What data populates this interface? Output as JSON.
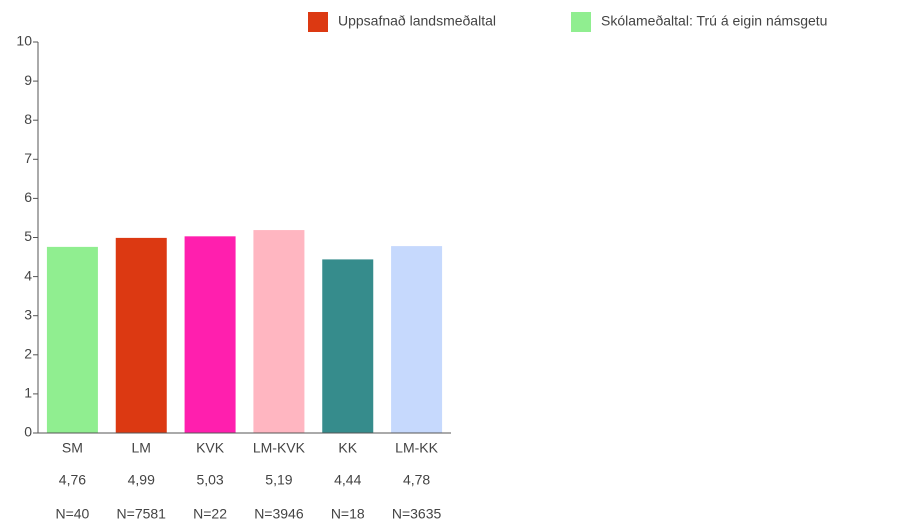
{
  "chart_data": {
    "type": "bar",
    "legend": [
      {
        "name": "Uppsafnað landsmeðaltal",
        "color": "#dc3912"
      },
      {
        "name": "Skólameðaltal: Trú á eigin námsgetu",
        "color": "#90ee90"
      }
    ],
    "categories": [
      "SM",
      "LM",
      "KVK",
      "LM-KVK",
      "KK",
      "LM-KK"
    ],
    "values": [
      4.76,
      4.99,
      5.03,
      5.19,
      4.44,
      4.78
    ],
    "value_labels": [
      "4,76",
      "4,99",
      "5,03",
      "5,19",
      "4,44",
      "4,78"
    ],
    "n_labels": [
      "N=40",
      "N=7581",
      "N=22",
      "N=3946",
      "N=18",
      "N=3635"
    ],
    "colors": [
      "#90ee90",
      "#dc3912",
      "#ff1fae",
      "#ffb6c1",
      "#368c8c",
      "#c6d9fd"
    ],
    "ylim": [
      0,
      10
    ],
    "yticks": [
      0,
      1,
      2,
      3,
      4,
      5,
      6,
      7,
      8,
      9,
      10
    ],
    "grid": false
  }
}
